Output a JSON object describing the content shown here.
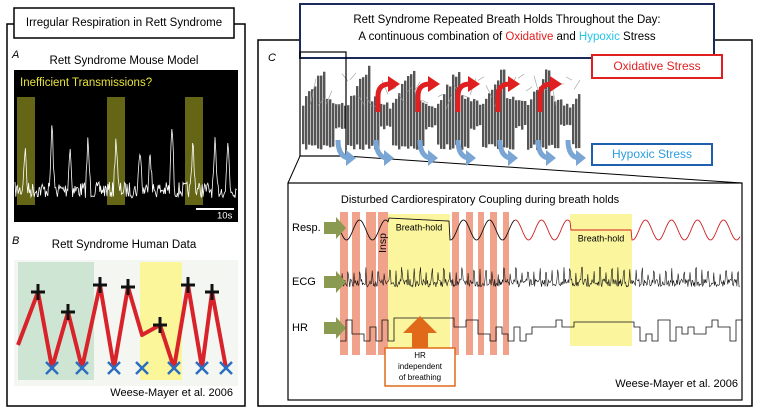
{
  "left_panel": {
    "title": "Irregular Respiration in Rett Syndrome",
    "panel_a": {
      "letter": "A",
      "title": "Rett Syndrome Mouse Model",
      "annotation": "Inefficient Transmissions?",
      "scale_bar": "10s"
    },
    "panel_b": {
      "letter": "B",
      "title": "Rett Syndrome Human Data",
      "citation": "Weese-Mayer et al. 2006"
    }
  },
  "right_panel": {
    "title_line1": "Rett Syndrome Repeated Breath Holds Throughout the Day:",
    "title_line2": {
      "prefix": "A continuous combination of ",
      "oxidative": "Oxidative",
      "middle": " and ",
      "hypoxic": "Hypoxic",
      "suffix": " Stress"
    },
    "letter": "C",
    "oxidative_label": "Oxidative Stress",
    "hypoxic_label": "Hypoxic Stress",
    "inset": {
      "title": "Disturbed Cardiorespiratory Coupling during breath holds",
      "row_labels": [
        "Resp.",
        "ECG",
        "HR"
      ],
      "insp_label": "Insp",
      "breath_hold_labels": [
        "Breath-hold",
        "Breath-hold"
      ],
      "hr_note": [
        "HR",
        "independent",
        "of breathing"
      ],
      "citation": "Weese-Mayer et al. 2006"
    }
  }
}
